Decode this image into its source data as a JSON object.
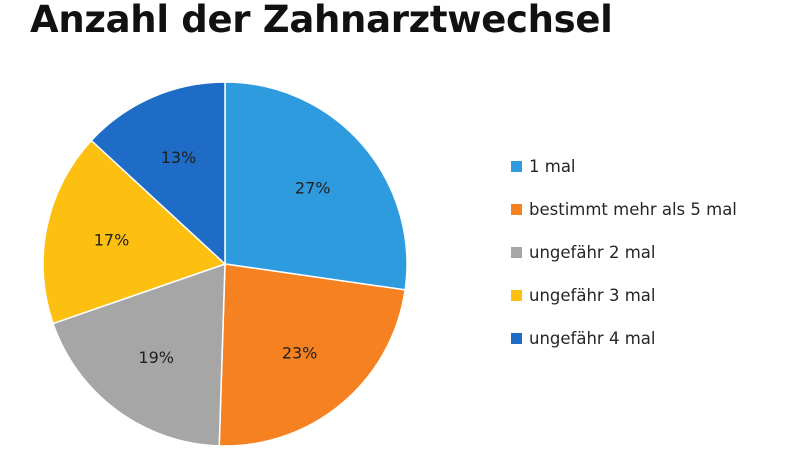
{
  "chart_data": {
    "type": "pie",
    "title": "Anzahl der Zahnarztwechsel",
    "legend_position": "right",
    "slices": [
      {
        "label": "1 mal",
        "value": 27,
        "display": "27%",
        "color": "#2e9bdf"
      },
      {
        "label": "bestimmt mehr als 5 mal",
        "value": 23,
        "display": "23%",
        "color": "#f58120"
      },
      {
        "label": "ungefähr 2 mal",
        "value": 19,
        "display": "19%",
        "color": "#a6a6a6"
      },
      {
        "label": "ungefähr 3 mal",
        "value": 17,
        "display": "17%",
        "color": "#fdc011"
      },
      {
        "label": "ungefähr 4 mal",
        "value": 13,
        "display": "13%",
        "color": "#1f6cc7"
      }
    ]
  }
}
